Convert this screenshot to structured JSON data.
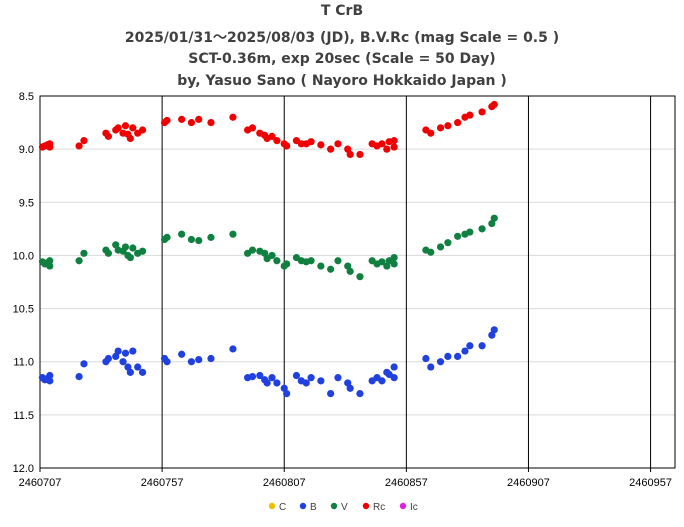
{
  "chart_data": {
    "type": "scatter",
    "title": "T CrB",
    "subtitle_lines": [
      "2025/01/31～2025/08/03 (JD),  B.V.Rc (mag Scale = 0.5 )",
      "SCT-0.36m, exp 20sec (Scale = 50 Day)",
      "by, Yasuo Sano ( Nayoro Hokkaido Japan )"
    ],
    "xlim": [
      2460707,
      2460967
    ],
    "ylim": [
      12.0,
      8.5
    ],
    "y_inverted": true,
    "x_ticks": [
      "2460707",
      "2460757",
      "2460807",
      "2460857",
      "2460907",
      "2460957"
    ],
    "y_ticks": [
      "8.5",
      "9.0",
      "9.5",
      "10.0",
      "10.5",
      "11.0",
      "11.5",
      "12.0"
    ],
    "grid": "vertical lines at x ticks, horizontal lines every 0.5 mag",
    "legend_position": "bottom",
    "series": [
      {
        "name": "C",
        "color": "#f0c000",
        "points": []
      },
      {
        "name": "B",
        "color": "#2040e0",
        "points": [
          [
            2460708,
            11.15
          ],
          [
            2460709,
            11.17
          ],
          [
            2460710,
            11.16
          ],
          [
            2460711,
            11.18
          ],
          [
            2460711,
            11.13
          ],
          [
            2460723,
            11.14
          ],
          [
            2460725,
            11.02
          ],
          [
            2460734,
            11.0
          ],
          [
            2460735,
            10.97
          ],
          [
            2460738,
            10.95
          ],
          [
            2460739,
            10.9
          ],
          [
            2460741,
            11.0
          ],
          [
            2460742,
            10.92
          ],
          [
            2460743,
            11.05
          ],
          [
            2460744,
            11.1
          ],
          [
            2460745,
            10.9
          ],
          [
            2460747,
            11.05
          ],
          [
            2460749,
            11.1
          ],
          [
            2460758,
            10.97
          ],
          [
            2460759,
            11.0
          ],
          [
            2460765,
            10.93
          ],
          [
            2460769,
            11.0
          ],
          [
            2460772,
            10.98
          ],
          [
            2460777,
            10.97
          ],
          [
            2460786,
            10.88
          ],
          [
            2460792,
            11.15
          ],
          [
            2460794,
            11.14
          ],
          [
            2460797,
            11.13
          ],
          [
            2460799,
            11.17
          ],
          [
            2460800,
            11.2
          ],
          [
            2460802,
            11.15
          ],
          [
            2460804,
            11.2
          ],
          [
            2460807,
            11.25
          ],
          [
            2460808,
            11.3
          ],
          [
            2460812,
            11.13
          ],
          [
            2460814,
            11.18
          ],
          [
            2460816,
            11.2
          ],
          [
            2460818,
            11.15
          ],
          [
            2460822,
            11.18
          ],
          [
            2460826,
            11.3
          ],
          [
            2460829,
            11.15
          ],
          [
            2460833,
            11.2
          ],
          [
            2460834,
            11.25
          ],
          [
            2460838,
            11.3
          ],
          [
            2460843,
            11.18
          ],
          [
            2460845,
            11.15
          ],
          [
            2460847,
            11.18
          ],
          [
            2460849,
            11.1
          ],
          [
            2460850,
            11.12
          ],
          [
            2460852,
            11.15
          ],
          [
            2460852,
            11.05
          ],
          [
            2460865,
            10.97
          ],
          [
            2460867,
            11.05
          ],
          [
            2460871,
            11.0
          ],
          [
            2460874,
            10.95
          ],
          [
            2460878,
            10.95
          ],
          [
            2460881,
            10.9
          ],
          [
            2460883,
            10.85
          ],
          [
            2460888,
            10.85
          ],
          [
            2460892,
            10.75
          ],
          [
            2460893,
            10.7
          ]
        ]
      },
      {
        "name": "V",
        "color": "#108040",
        "points": [
          [
            2460708,
            10.06
          ],
          [
            2460709,
            10.08
          ],
          [
            2460710,
            10.07
          ],
          [
            2460711,
            10.1
          ],
          [
            2460711,
            10.05
          ],
          [
            2460723,
            10.05
          ],
          [
            2460725,
            9.98
          ],
          [
            2460734,
            9.95
          ],
          [
            2460735,
            9.98
          ],
          [
            2460738,
            9.9
          ],
          [
            2460739,
            9.95
          ],
          [
            2460741,
            9.96
          ],
          [
            2460742,
            9.92
          ],
          [
            2460743,
            10.0
          ],
          [
            2460744,
            10.02
          ],
          [
            2460745,
            9.93
          ],
          [
            2460747,
            9.98
          ],
          [
            2460749,
            9.96
          ],
          [
            2460758,
            9.85
          ],
          [
            2460759,
            9.83
          ],
          [
            2460765,
            9.8
          ],
          [
            2460769,
            9.85
          ],
          [
            2460772,
            9.86
          ],
          [
            2460777,
            9.83
          ],
          [
            2460786,
            9.8
          ],
          [
            2460792,
            9.98
          ],
          [
            2460794,
            9.95
          ],
          [
            2460797,
            9.96
          ],
          [
            2460799,
            9.98
          ],
          [
            2460800,
            10.03
          ],
          [
            2460802,
            10.0
          ],
          [
            2460804,
            10.05
          ],
          [
            2460807,
            10.1
          ],
          [
            2460808,
            10.08
          ],
          [
            2460812,
            10.02
          ],
          [
            2460814,
            10.05
          ],
          [
            2460816,
            10.06
          ],
          [
            2460818,
            10.05
          ],
          [
            2460822,
            10.1
          ],
          [
            2460826,
            10.13
          ],
          [
            2460829,
            10.05
          ],
          [
            2460833,
            10.1
          ],
          [
            2460834,
            10.15
          ],
          [
            2460838,
            10.2
          ],
          [
            2460843,
            10.05
          ],
          [
            2460845,
            10.08
          ],
          [
            2460847,
            10.06
          ],
          [
            2460849,
            10.1
          ],
          [
            2460850,
            10.05
          ],
          [
            2460852,
            10.08
          ],
          [
            2460852,
            10.02
          ],
          [
            2460865,
            9.95
          ],
          [
            2460867,
            9.97
          ],
          [
            2460871,
            9.92
          ],
          [
            2460874,
            9.88
          ],
          [
            2460878,
            9.82
          ],
          [
            2460881,
            9.8
          ],
          [
            2460883,
            9.78
          ],
          [
            2460888,
            9.75
          ],
          [
            2460892,
            9.7
          ],
          [
            2460893,
            9.65
          ]
        ]
      },
      {
        "name": "Rc",
        "color": "#f00000",
        "points": [
          [
            2460708,
            8.98
          ],
          [
            2460709,
            8.97
          ],
          [
            2460710,
            8.96
          ],
          [
            2460711,
            8.98
          ],
          [
            2460711,
            8.95
          ],
          [
            2460723,
            8.97
          ],
          [
            2460725,
            8.92
          ],
          [
            2460734,
            8.85
          ],
          [
            2460735,
            8.88
          ],
          [
            2460738,
            8.82
          ],
          [
            2460739,
            8.8
          ],
          [
            2460741,
            8.85
          ],
          [
            2460742,
            8.78
          ],
          [
            2460743,
            8.86
          ],
          [
            2460744,
            8.9
          ],
          [
            2460745,
            8.8
          ],
          [
            2460747,
            8.85
          ],
          [
            2460749,
            8.82
          ],
          [
            2460758,
            8.75
          ],
          [
            2460759,
            8.73
          ],
          [
            2460765,
            8.72
          ],
          [
            2460769,
            8.75
          ],
          [
            2460772,
            8.72
          ],
          [
            2460777,
            8.75
          ],
          [
            2460786,
            8.7
          ],
          [
            2460792,
            8.82
          ],
          [
            2460794,
            8.8
          ],
          [
            2460797,
            8.85
          ],
          [
            2460799,
            8.87
          ],
          [
            2460800,
            8.9
          ],
          [
            2460802,
            8.88
          ],
          [
            2460804,
            8.92
          ],
          [
            2460807,
            8.95
          ],
          [
            2460808,
            8.97
          ],
          [
            2460812,
            8.92
          ],
          [
            2460814,
            8.95
          ],
          [
            2460816,
            8.95
          ],
          [
            2460818,
            8.93
          ],
          [
            2460822,
            8.96
          ],
          [
            2460826,
            9.0
          ],
          [
            2460829,
            8.95
          ],
          [
            2460833,
            9.0
          ],
          [
            2460834,
            9.05
          ],
          [
            2460838,
            9.05
          ],
          [
            2460843,
            8.95
          ],
          [
            2460845,
            8.97
          ],
          [
            2460847,
            8.95
          ],
          [
            2460849,
            9.0
          ],
          [
            2460850,
            8.93
          ],
          [
            2460852,
            8.98
          ],
          [
            2460852,
            8.92
          ],
          [
            2460865,
            8.82
          ],
          [
            2460867,
            8.85
          ],
          [
            2460871,
            8.8
          ],
          [
            2460874,
            8.78
          ],
          [
            2460878,
            8.75
          ],
          [
            2460881,
            8.7
          ],
          [
            2460883,
            8.68
          ],
          [
            2460888,
            8.65
          ],
          [
            2460892,
            8.6
          ],
          [
            2460893,
            8.58
          ]
        ]
      },
      {
        "name": "Ic",
        "color": "#e020e0",
        "points": []
      }
    ]
  }
}
